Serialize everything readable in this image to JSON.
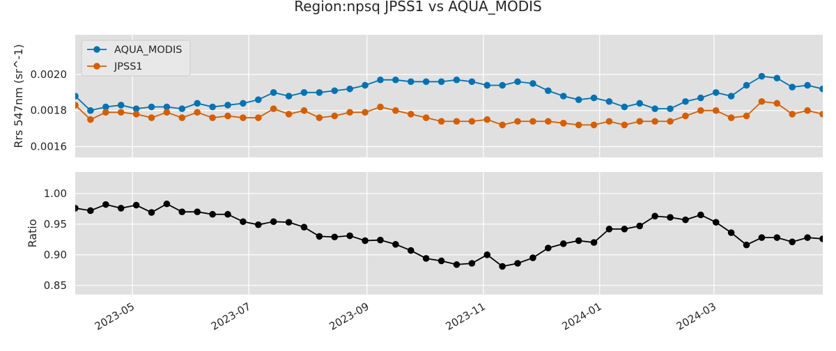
{
  "figure": {
    "title": "Region:npsq JPSS1 vs AQUA_MODIS"
  },
  "chart_data": [
    {
      "type": "line",
      "ylabel": "Rrs 547nm (sr^-1)",
      "ylim": [
        0.00154,
        0.00222
      ],
      "yticks": [
        0.0016,
        0.0018,
        0.002
      ],
      "ytick_labels": [
        "0.0016",
        "0.0018",
        "0.0020"
      ],
      "xlim": [
        "2023-04-01",
        "2024-04-27"
      ],
      "grid": true,
      "legend": "top-left",
      "x": [
        "2023-04-01",
        "2023-04-09",
        "2023-04-17",
        "2023-04-25",
        "2023-05-03",
        "2023-05-11",
        "2023-05-19",
        "2023-05-27",
        "2023-06-04",
        "2023-06-12",
        "2023-06-20",
        "2023-06-28",
        "2023-07-06",
        "2023-07-14",
        "2023-07-22",
        "2023-07-30",
        "2023-08-07",
        "2023-08-15",
        "2023-08-23",
        "2023-08-31",
        "2023-09-08",
        "2023-09-16",
        "2023-09-24",
        "2023-10-02",
        "2023-10-10",
        "2023-10-18",
        "2023-10-26",
        "2023-11-03",
        "2023-11-11",
        "2023-11-19",
        "2023-11-27",
        "2023-12-05",
        "2023-12-13",
        "2023-12-21",
        "2023-12-29",
        "2024-01-06",
        "2024-01-14",
        "2024-01-22",
        "2024-01-30",
        "2024-02-07",
        "2024-02-15",
        "2024-02-23",
        "2024-03-02",
        "2024-03-10",
        "2024-03-18",
        "2024-03-26",
        "2024-04-03",
        "2024-04-11",
        "2024-04-19",
        "2024-04-27"
      ],
      "series": [
        {
          "name": "AQUA_MODIS",
          "color": "#0072b2",
          "values": [
            0.00188,
            0.0018,
            0.00182,
            0.00183,
            0.00181,
            0.00182,
            0.00182,
            0.00181,
            0.00184,
            0.00182,
            0.00183,
            0.00184,
            0.00186,
            0.0019,
            0.00188,
            0.0019,
            0.0019,
            0.00191,
            0.00192,
            0.00194,
            0.00197,
            0.00197,
            0.00196,
            0.00196,
            0.00196,
            0.00197,
            0.00196,
            0.00194,
            0.00194,
            0.00196,
            0.00195,
            0.00191,
            0.00188,
            0.00186,
            0.00187,
            0.00185,
            0.00182,
            0.00184,
            0.00181,
            0.00181,
            0.00185,
            0.00187,
            0.0019,
            0.00188,
            0.00194,
            0.00199,
            0.00198,
            0.00193,
            0.00194,
            0.00192
          ]
        },
        {
          "name": "JPSS1",
          "color": "#d55e00",
          "values": [
            0.00183,
            0.00175,
            0.00179,
            0.00179,
            0.00178,
            0.00176,
            0.00179,
            0.00176,
            0.00179,
            0.00176,
            0.00177,
            0.00176,
            0.00176,
            0.00181,
            0.00178,
            0.0018,
            0.00176,
            0.00177,
            0.00179,
            0.00179,
            0.00182,
            0.0018,
            0.00178,
            0.00176,
            0.00174,
            0.00174,
            0.00174,
            0.00175,
            0.00172,
            0.00174,
            0.00174,
            0.00174,
            0.00173,
            0.00172,
            0.00172,
            0.00174,
            0.00172,
            0.00174,
            0.00174,
            0.00174,
            0.00177,
            0.0018,
            0.0018,
            0.00176,
            0.00177,
            0.00185,
            0.00184,
            0.00178,
            0.0018,
            0.00178
          ]
        }
      ]
    },
    {
      "type": "line",
      "ylabel": "Ratio",
      "ylim": [
        0.835,
        1.035
      ],
      "yticks": [
        0.85,
        0.9,
        0.95,
        1.0
      ],
      "ytick_labels": [
        "0.85",
        "0.90",
        "0.95",
        "1.00"
      ],
      "xlim": [
        "2023-04-01",
        "2024-04-27"
      ],
      "xticks": [
        "2023-05-01",
        "2023-07-01",
        "2023-09-01",
        "2023-11-01",
        "2024-01-01",
        "2024-03-01"
      ],
      "xtick_labels": [
        "2023-05",
        "2023-07",
        "2023-09",
        "2023-11",
        "2024-01",
        "2024-03"
      ],
      "grid": true,
      "x": [
        "2023-04-01",
        "2023-04-09",
        "2023-04-17",
        "2023-04-25",
        "2023-05-03",
        "2023-05-11",
        "2023-05-19",
        "2023-05-27",
        "2023-06-04",
        "2023-06-12",
        "2023-06-20",
        "2023-06-28",
        "2023-07-06",
        "2023-07-14",
        "2023-07-22",
        "2023-07-30",
        "2023-08-07",
        "2023-08-15",
        "2023-08-23",
        "2023-08-31",
        "2023-09-08",
        "2023-09-16",
        "2023-09-24",
        "2023-10-02",
        "2023-10-10",
        "2023-10-18",
        "2023-10-26",
        "2023-11-03",
        "2023-11-11",
        "2023-11-19",
        "2023-11-27",
        "2023-12-05",
        "2023-12-13",
        "2023-12-21",
        "2023-12-29",
        "2024-01-06",
        "2024-01-14",
        "2024-01-22",
        "2024-01-30",
        "2024-02-07",
        "2024-02-15",
        "2024-02-23",
        "2024-03-02",
        "2024-03-10",
        "2024-03-18",
        "2024-03-26",
        "2024-04-03",
        "2024-04-11",
        "2024-04-19",
        "2024-04-27"
      ],
      "series": [
        {
          "color": "#000000",
          "values": [
            0.976,
            0.972,
            0.982,
            0.976,
            0.981,
            0.969,
            0.983,
            0.97,
            0.97,
            0.966,
            0.966,
            0.954,
            0.949,
            0.954,
            0.953,
            0.945,
            0.93,
            0.929,
            0.931,
            0.923,
            0.924,
            0.917,
            0.907,
            0.894,
            0.89,
            0.884,
            0.886,
            0.9,
            0.881,
            0.886,
            0.895,
            0.911,
            0.918,
            0.923,
            0.92,
            0.942,
            0.942,
            0.947,
            0.963,
            0.961,
            0.957,
            0.965,
            0.953,
            0.936,
            0.916,
            0.928,
            0.928,
            0.921,
            0.928,
            0.926
          ]
        }
      ]
    }
  ]
}
